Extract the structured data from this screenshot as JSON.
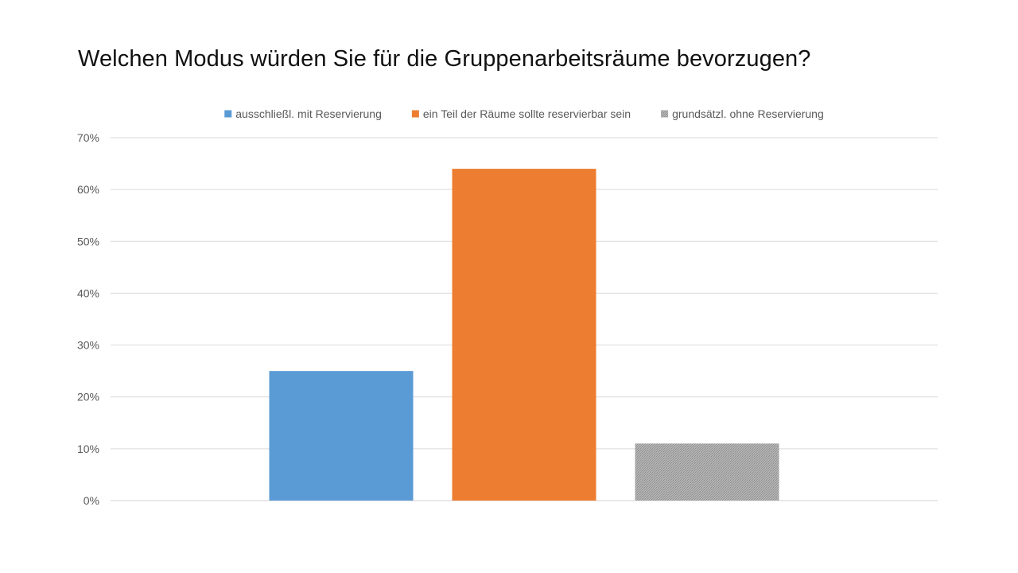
{
  "chart_data": {
    "type": "bar",
    "title": "Welchen Modus würden Sie für die Gruppenarbeitsräume bevorzugen?",
    "xlabel": "",
    "ylabel": "",
    "ylim": [
      0,
      0.7
    ],
    "y_ticks": [
      "0%",
      "10%",
      "20%",
      "30%",
      "40%",
      "50%",
      "60%",
      "70%"
    ],
    "grid": true,
    "legend_position": "top",
    "series": [
      {
        "name": "ausschließl. mit Reservierung",
        "values": [
          0.25
        ],
        "color": "#5B9BD5"
      },
      {
        "name": "ein Teil der Räume sollte reservierbar sein",
        "values": [
          0.64
        ],
        "color": "#ED7D31"
      },
      {
        "name": "grundsätzl. ohne Reservierung",
        "values": [
          0.11
        ],
        "color": "#A5A5A5",
        "pattern": "dotted-fill"
      }
    ]
  }
}
